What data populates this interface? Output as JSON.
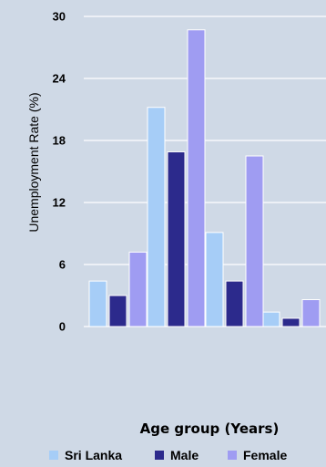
{
  "chart_data": {
    "type": "bar",
    "categories": [
      "",
      "",
      "",
      ""
    ],
    "ylabel": "Unemployment Rate (%)",
    "xlabel": "Age group (Years)",
    "ylim": [
      0,
      30
    ],
    "yticks": [
      "0",
      "6",
      "12",
      "18",
      "24",
      "30"
    ],
    "grid": true,
    "legend_position": "bottom",
    "series": [
      {
        "name": "Sri Lanka",
        "values": [
          4.4,
          21.2,
          9.1,
          1.4
        ],
        "color": "#a6cdf7"
      },
      {
        "name": "Male",
        "values": [
          3.0,
          16.9,
          4.4,
          0.8
        ],
        "color": "#2c2a8c"
      },
      {
        "name": "Female",
        "values": [
          7.2,
          28.7,
          16.5,
          2.6
        ],
        "color": "#9f9cf2"
      }
    ]
  }
}
